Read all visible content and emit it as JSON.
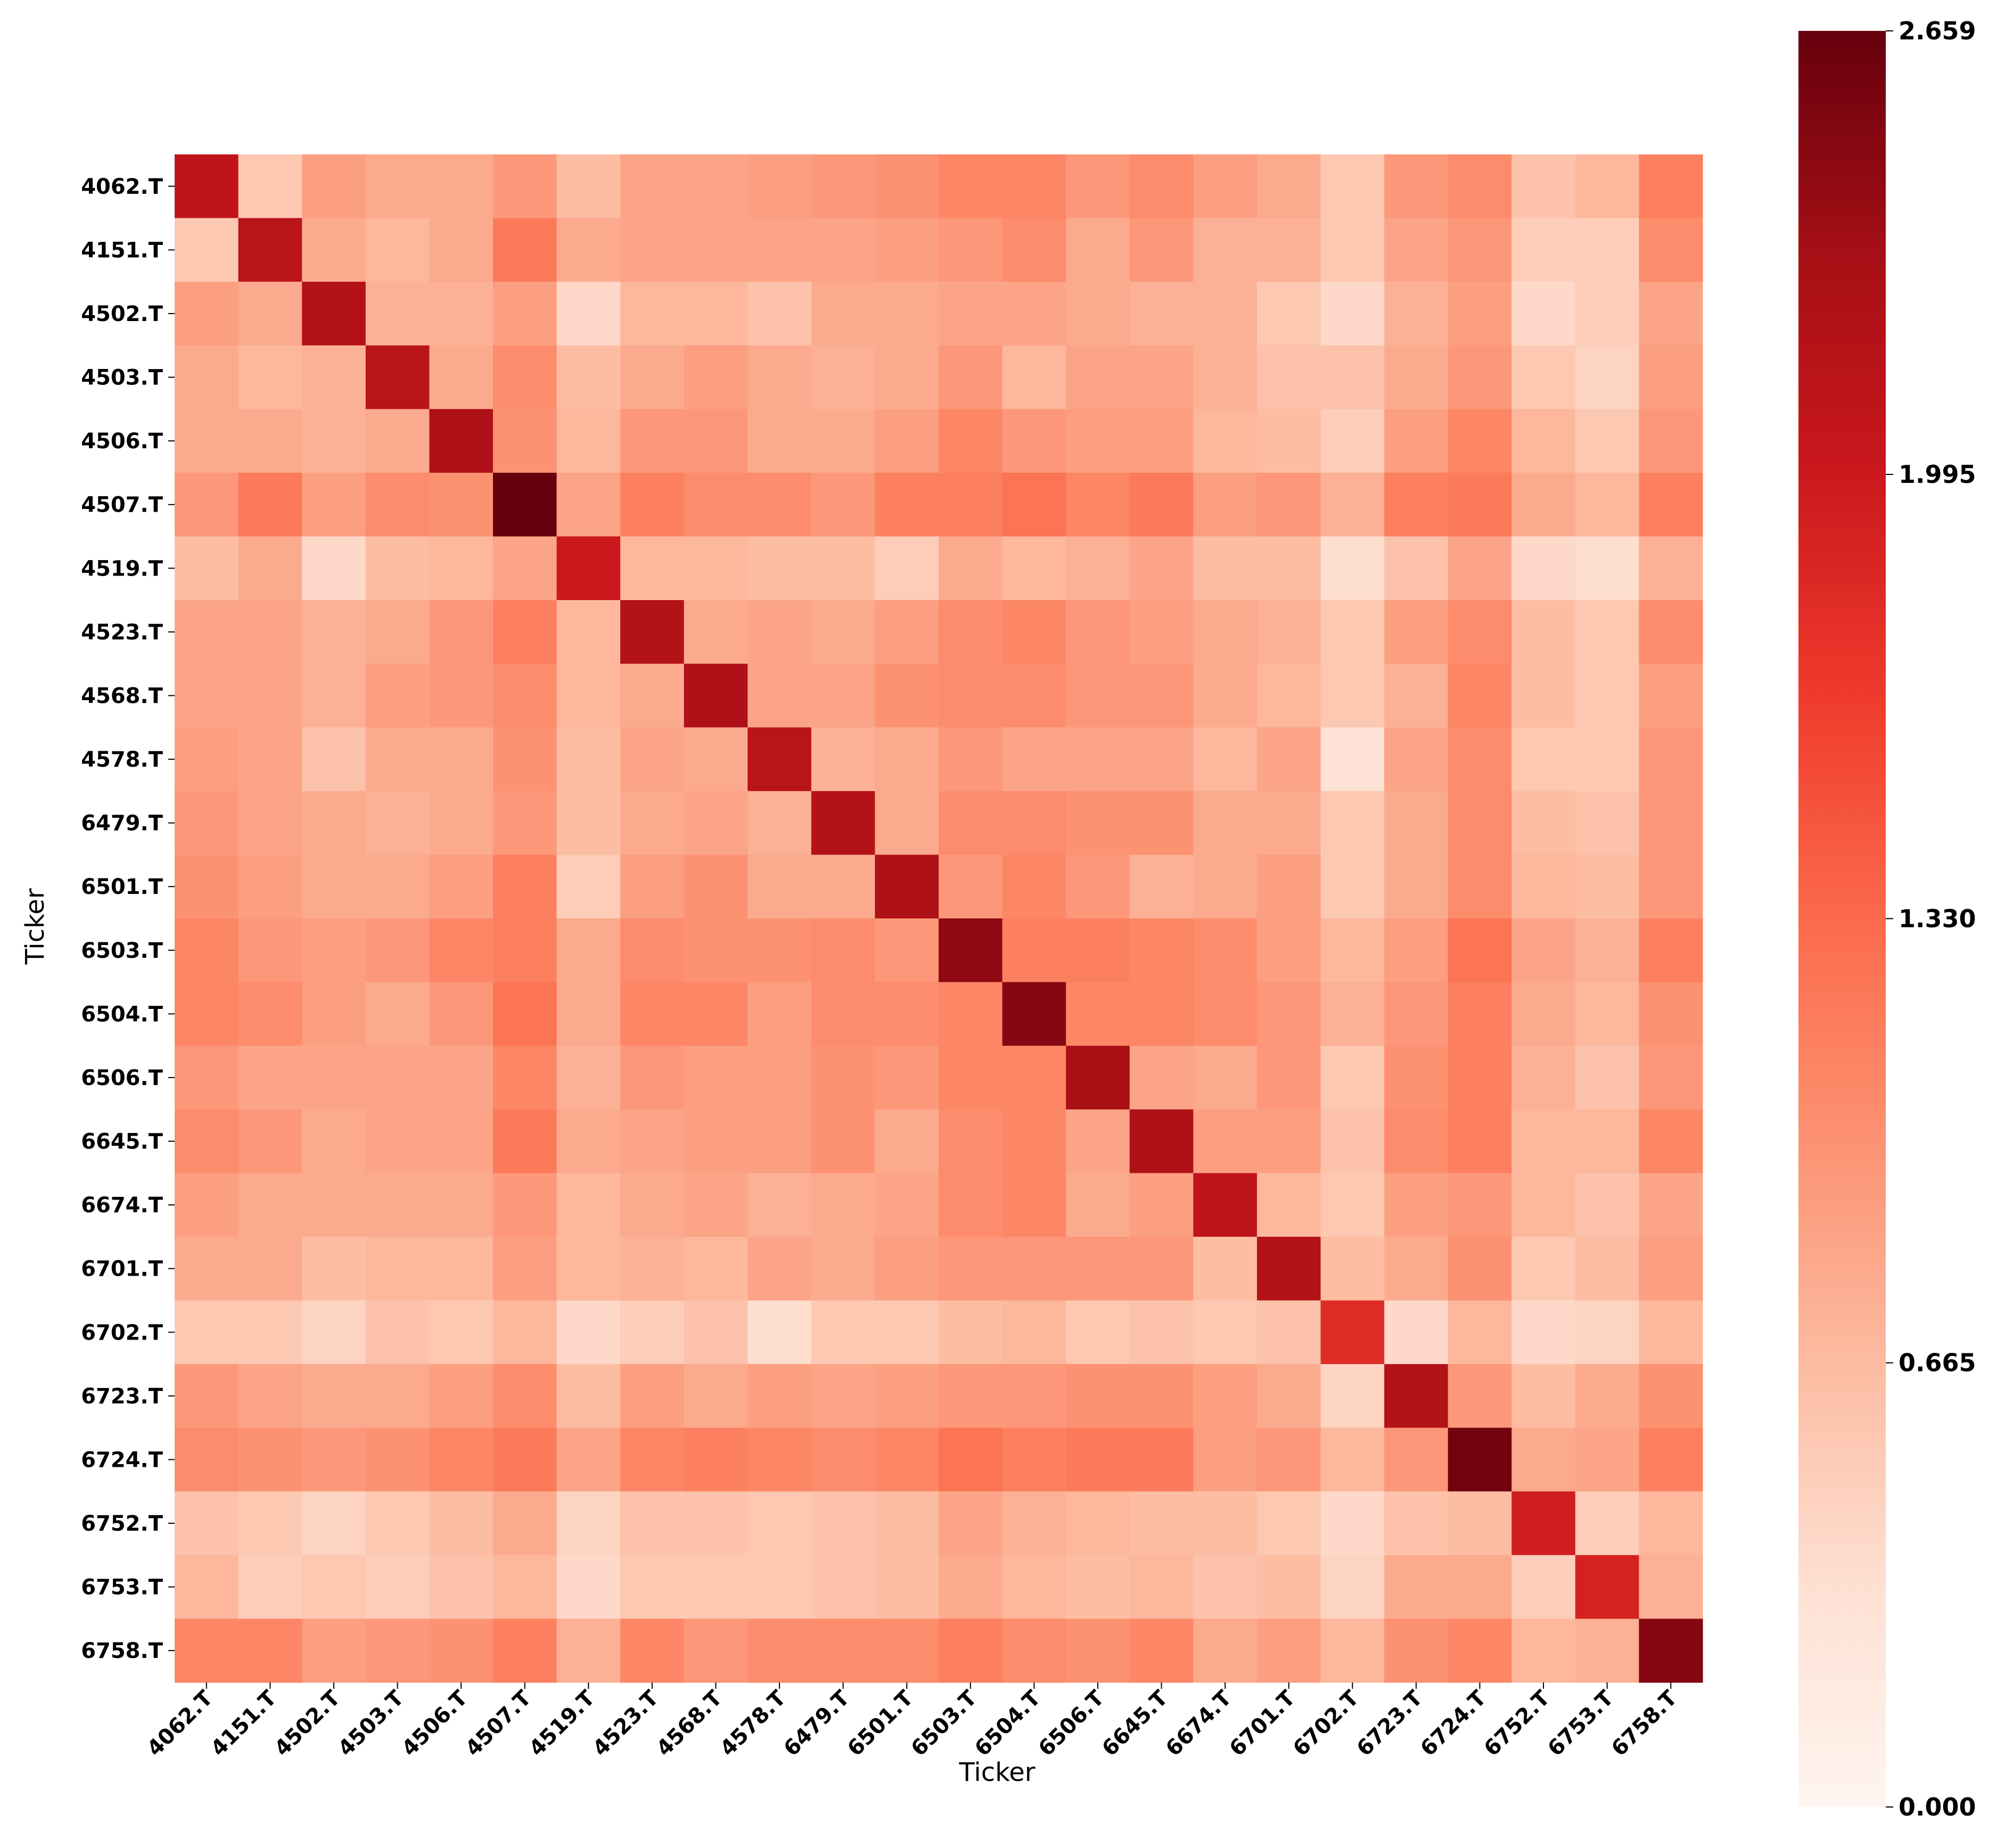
{
  "chart_data": {
    "type": "heatmap",
    "title": "",
    "xlabel": "Ticker",
    "ylabel": "Ticker",
    "colormap": "Reds",
    "vmin": 0.0,
    "vmax": 2.659,
    "colorbar": {
      "ticks": [
        0.0,
        0.665,
        1.33,
        1.995,
        2.659
      ],
      "tick_labels": [
        "0.000",
        "0.665",
        "1.330",
        "1.995",
        "2.659"
      ]
    },
    "labels": [
      "4062.T",
      "4151.T",
      "4502.T",
      "4503.T",
      "4506.T",
      "4507.T",
      "4519.T",
      "4523.T",
      "4568.T",
      "4578.T",
      "6479.T",
      "6501.T",
      "6503.T",
      "6504.T",
      "6506.T",
      "6645.T",
      "6674.T",
      "6701.T",
      "6702.T",
      "6723.T",
      "6724.T",
      "6752.T",
      "6753.T",
      "6758.T"
    ],
    "values": [
      [
        2.1,
        0.55,
        0.9,
        0.8,
        0.8,
        0.95,
        0.65,
        0.85,
        0.85,
        0.9,
        0.95,
        1.0,
        1.1,
        1.1,
        0.95,
        1.05,
        0.9,
        0.8,
        0.55,
        0.95,
        1.05,
        0.6,
        0.7,
        1.15
      ],
      [
        0.55,
        2.15,
        0.8,
        0.7,
        0.8,
        1.2,
        0.8,
        0.85,
        0.85,
        0.85,
        0.85,
        0.9,
        0.95,
        1.05,
        0.8,
        0.95,
        0.75,
        0.75,
        0.55,
        0.85,
        0.95,
        0.5,
        0.5,
        1.05
      ],
      [
        0.9,
        0.8,
        2.2,
        0.75,
        0.75,
        0.9,
        0.4,
        0.7,
        0.7,
        0.6,
        0.8,
        0.8,
        0.85,
        0.85,
        0.8,
        0.75,
        0.75,
        0.55,
        0.4,
        0.75,
        0.9,
        0.4,
        0.5,
        0.85
      ],
      [
        0.8,
        0.7,
        0.75,
        2.15,
        0.8,
        1.05,
        0.65,
        0.8,
        0.9,
        0.8,
        0.75,
        0.8,
        0.95,
        0.7,
        0.85,
        0.85,
        0.75,
        0.6,
        0.6,
        0.8,
        0.95,
        0.55,
        0.45,
        0.9
      ],
      [
        0.8,
        0.8,
        0.75,
        0.8,
        2.25,
        1.0,
        0.7,
        0.95,
        0.95,
        0.8,
        0.8,
        0.9,
        1.1,
        0.95,
        0.9,
        0.9,
        0.7,
        0.65,
        0.5,
        0.9,
        1.1,
        0.7,
        0.55,
        0.95
      ],
      [
        0.95,
        1.2,
        0.9,
        1.05,
        1.0,
        2.66,
        0.85,
        1.15,
        1.05,
        1.05,
        0.95,
        1.15,
        1.15,
        1.25,
        1.1,
        1.2,
        0.9,
        0.95,
        0.75,
        1.15,
        1.2,
        0.8,
        0.7,
        1.15
      ],
      [
        0.65,
        0.8,
        0.4,
        0.65,
        0.7,
        0.85,
        2.0,
        0.7,
        0.7,
        0.65,
        0.65,
        0.5,
        0.8,
        0.7,
        0.75,
        0.85,
        0.65,
        0.65,
        0.35,
        0.6,
        0.85,
        0.4,
        0.35,
        0.75
      ],
      [
        0.85,
        0.85,
        0.75,
        0.8,
        0.95,
        1.15,
        0.7,
        2.2,
        0.8,
        0.85,
        0.8,
        0.9,
        1.05,
        1.1,
        0.95,
        0.9,
        0.8,
        0.75,
        0.55,
        0.9,
        1.05,
        0.65,
        0.55,
        1.05
      ],
      [
        0.85,
        0.85,
        0.75,
        0.9,
        0.95,
        1.05,
        0.7,
        0.8,
        2.25,
        0.85,
        0.85,
        1.0,
        1.05,
        1.05,
        0.95,
        0.95,
        0.8,
        0.7,
        0.55,
        0.75,
        1.1,
        0.65,
        0.55,
        0.9
      ],
      [
        0.9,
        0.85,
        0.6,
        0.8,
        0.8,
        1.0,
        0.65,
        0.85,
        0.8,
        2.15,
        0.75,
        0.8,
        0.95,
        0.85,
        0.85,
        0.85,
        0.7,
        0.85,
        0.3,
        0.85,
        1.05,
        0.55,
        0.55,
        0.95
      ],
      [
        0.95,
        0.85,
        0.8,
        0.75,
        0.8,
        0.95,
        0.65,
        0.8,
        0.85,
        0.75,
        2.2,
        0.8,
        1.05,
        1.05,
        1.0,
        1.0,
        0.8,
        0.8,
        0.55,
        0.8,
        1.05,
        0.65,
        0.6,
        0.95
      ],
      [
        1.0,
        0.9,
        0.8,
        0.8,
        0.9,
        1.15,
        0.5,
        0.9,
        1.0,
        0.8,
        0.8,
        2.25,
        0.95,
        1.1,
        0.95,
        0.75,
        0.8,
        0.9,
        0.55,
        0.8,
        1.05,
        0.7,
        0.65,
        0.95
      ],
      [
        1.1,
        0.95,
        0.9,
        0.95,
        1.1,
        1.15,
        0.8,
        1.05,
        1.0,
        1.0,
        1.05,
        0.95,
        2.45,
        1.15,
        1.15,
        1.1,
        1.05,
        0.9,
        0.7,
        0.9,
        1.25,
        0.85,
        0.75,
        1.15
      ],
      [
        1.1,
        1.05,
        0.9,
        0.8,
        0.95,
        1.25,
        0.8,
        1.1,
        1.1,
        0.9,
        1.05,
        1.05,
        1.1,
        2.5,
        1.1,
        1.1,
        1.05,
        0.95,
        0.75,
        0.95,
        1.15,
        0.8,
        0.7,
        1.0
      ],
      [
        0.95,
        0.85,
        0.85,
        0.85,
        0.85,
        1.1,
        0.75,
        0.95,
        0.9,
        0.9,
        1.0,
        0.95,
        1.1,
        1.1,
        2.3,
        0.85,
        0.8,
        0.95,
        0.55,
        1.0,
        1.15,
        0.75,
        0.6,
        0.95
      ],
      [
        1.05,
        0.95,
        0.8,
        0.85,
        0.85,
        1.2,
        0.8,
        0.85,
        0.9,
        0.9,
        1.0,
        0.8,
        1.05,
        1.1,
        0.85,
        2.25,
        0.9,
        0.9,
        0.6,
        1.05,
        1.15,
        0.7,
        0.7,
        1.1
      ],
      [
        0.9,
        0.8,
        0.8,
        0.8,
        0.8,
        0.95,
        0.7,
        0.8,
        0.85,
        0.75,
        0.8,
        0.85,
        1.05,
        1.1,
        0.8,
        0.9,
        2.1,
        0.7,
        0.55,
        0.9,
        0.95,
        0.7,
        0.6,
        0.85
      ],
      [
        0.8,
        0.8,
        0.65,
        0.7,
        0.7,
        0.9,
        0.7,
        0.75,
        0.7,
        0.85,
        0.8,
        0.9,
        0.95,
        0.95,
        0.95,
        0.95,
        0.65,
        2.2,
        0.65,
        0.8,
        1.0,
        0.55,
        0.65,
        0.9
      ],
      [
        0.55,
        0.55,
        0.45,
        0.6,
        0.55,
        0.7,
        0.4,
        0.5,
        0.6,
        0.35,
        0.55,
        0.55,
        0.65,
        0.7,
        0.55,
        0.6,
        0.55,
        0.6,
        1.8,
        0.4,
        0.7,
        0.4,
        0.45,
        0.7
      ],
      [
        0.95,
        0.85,
        0.8,
        0.8,
        0.9,
        1.05,
        0.65,
        0.9,
        0.8,
        0.9,
        0.85,
        0.9,
        0.95,
        0.95,
        1.0,
        1.0,
        0.9,
        0.8,
        0.45,
        2.2,
        0.95,
        0.65,
        0.8,
        1.0
      ],
      [
        1.05,
        1.0,
        0.95,
        1.0,
        1.1,
        1.2,
        0.85,
        1.1,
        1.15,
        1.1,
        1.05,
        1.1,
        1.25,
        1.15,
        1.2,
        1.2,
        0.9,
        0.95,
        0.7,
        0.95,
        2.6,
        0.8,
        0.85,
        1.15
      ],
      [
        0.6,
        0.55,
        0.45,
        0.55,
        0.65,
        0.8,
        0.45,
        0.6,
        0.6,
        0.55,
        0.6,
        0.65,
        0.85,
        0.75,
        0.7,
        0.65,
        0.65,
        0.55,
        0.4,
        0.6,
        0.65,
        1.95,
        0.5,
        0.7
      ],
      [
        0.7,
        0.5,
        0.55,
        0.5,
        0.6,
        0.7,
        0.4,
        0.55,
        0.55,
        0.55,
        0.6,
        0.65,
        0.8,
        0.7,
        0.65,
        0.7,
        0.6,
        0.65,
        0.45,
        0.8,
        0.8,
        0.5,
        1.9,
        0.75
      ],
      [
        1.1,
        1.1,
        0.9,
        0.95,
        1.0,
        1.15,
        0.75,
        1.1,
        0.95,
        1.05,
        1.05,
        1.05,
        1.15,
        1.05,
        1.0,
        1.1,
        0.8,
        0.9,
        0.7,
        1.0,
        1.1,
        0.7,
        0.75,
        2.5
      ]
    ]
  }
}
